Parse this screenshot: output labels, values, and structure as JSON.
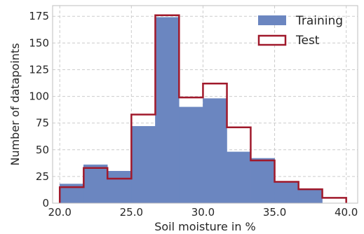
{
  "chart_data": {
    "type": "bar",
    "xlabel": "Soil moisture in %",
    "ylabel": "Number of datapoints",
    "xlim": [
      19.5,
      40.8
    ],
    "ylim": [
      0,
      185
    ],
    "x_ticks": [
      20.0,
      25.0,
      30.0,
      35.0,
      40.0
    ],
    "x_tick_labels": [
      "20.0",
      "25.0",
      "30.0",
      "35.0",
      "40.0"
    ],
    "y_ticks": [
      0,
      25,
      50,
      75,
      100,
      125,
      150,
      175
    ],
    "y_tick_labels": [
      "0",
      "25",
      "50",
      "75",
      "100",
      "125",
      "150",
      "175"
    ],
    "bin_edges": [
      20.0,
      21.67,
      23.33,
      25.0,
      26.67,
      28.33,
      30.0,
      31.67,
      33.33,
      35.0,
      36.67,
      38.33,
      40.0
    ],
    "grid": true,
    "legend_position": "top-right",
    "series": [
      {
        "name": "Training",
        "style": "filled",
        "color": "#6b86c0",
        "values": [
          18,
          36,
          30,
          72,
          174,
          90,
          98,
          48,
          42,
          20,
          13,
          0
        ]
      },
      {
        "name": "Test",
        "style": "step",
        "color": "#a0192b",
        "values": [
          15,
          33,
          23,
          83,
          176,
          99,
          112,
          71,
          40,
          20,
          13,
          5
        ]
      }
    ]
  }
}
